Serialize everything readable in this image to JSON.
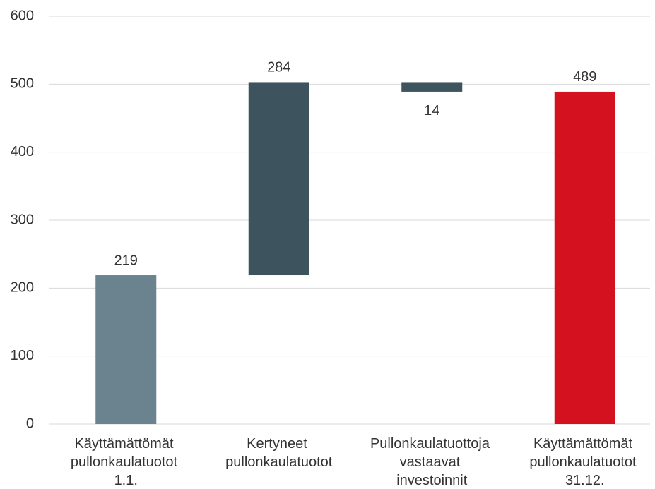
{
  "chart_data": {
    "type": "waterfall",
    "categories": [
      "Käyttämättömät pullonkaulatuotot 1.1.",
      "Kertyneet pullonkaulatuotot",
      "Pullonkaulatuottoja vastaavat investoinnit",
      "Käyttämättömät pullonkaulatuotot 31.12."
    ],
    "values": [
      219,
      284,
      -14,
      489
    ],
    "value_labels": [
      "219",
      "284",
      "14",
      "489"
    ],
    "measures": [
      "absolute",
      "relative",
      "relative",
      "total"
    ],
    "colors": [
      "#6b838e",
      "#3d545f",
      "#3d545f",
      "#d3111f"
    ],
    "ylim": [
      0,
      600
    ],
    "yticks": [
      0,
      100,
      200,
      300,
      400,
      500,
      600
    ],
    "grid": true
  }
}
